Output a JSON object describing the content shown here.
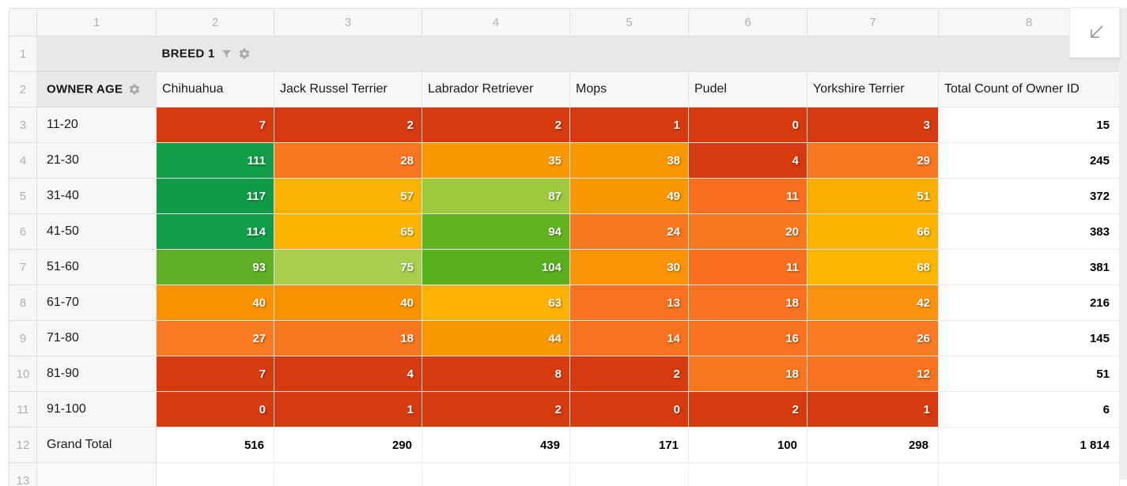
{
  "spreadsheet": {
    "column_headers": [
      "1",
      "2",
      "3",
      "4",
      "5",
      "6",
      "7",
      "8"
    ],
    "row_headers": [
      "1",
      "2",
      "3",
      "4",
      "5",
      "6",
      "7",
      "8",
      "9",
      "10",
      "11",
      "12",
      "13"
    ]
  },
  "pivot": {
    "row_dimension": "BREED 1",
    "column_dimension": "OWNER AGE",
    "totals_header": "Total Count of Owner ID",
    "grand_total_label": "Grand Total"
  },
  "chart_data": {
    "type": "heatmap",
    "x_categories": [
      "Chihuahua",
      "Jack Russel Terrier",
      "Labrador Retriever",
      "Mops",
      "Pudel",
      "Yorkshire Terrier"
    ],
    "y_categories": [
      "11-20",
      "21-30",
      "31-40",
      "41-50",
      "51-60",
      "61-70",
      "71-80",
      "81-90",
      "91-100"
    ],
    "values": [
      [
        7,
        2,
        2,
        1,
        0,
        3
      ],
      [
        111,
        28,
        35,
        38,
        4,
        29
      ],
      [
        117,
        57,
        87,
        49,
        11,
        51
      ],
      [
        114,
        65,
        94,
        24,
        20,
        66
      ],
      [
        93,
        75,
        104,
        30,
        11,
        68
      ],
      [
        40,
        40,
        63,
        13,
        18,
        42
      ],
      [
        27,
        18,
        44,
        14,
        16,
        26
      ],
      [
        7,
        4,
        8,
        2,
        18,
        12
      ],
      [
        0,
        1,
        2,
        0,
        2,
        1
      ]
    ],
    "row_totals": [
      15,
      245,
      372,
      383,
      381,
      216,
      145,
      51,
      6
    ],
    "column_totals": [
      "516",
      "290",
      "439",
      "171",
      "100",
      "298"
    ],
    "grand_total": "1 814",
    "cell_colors": [
      [
        "#d63b10",
        "#d63b10",
        "#d63b10",
        "#d63b10",
        "#d63b10",
        "#d63b10"
      ],
      [
        "#129d49",
        "#f87620",
        "#fa9800",
        "#fa9800",
        "#d63b10",
        "#f87620"
      ],
      [
        "#0e9c49",
        "#fcb200",
        "#9cca3c",
        "#fa9800",
        "#f8701f",
        "#fbae00"
      ],
      [
        "#109d49",
        "#fcb400",
        "#63b321",
        "#f87a20",
        "#f87a20",
        "#fcb400"
      ],
      [
        "#5fae23",
        "#a9ce4e",
        "#58b01e",
        "#fa9406",
        "#f8701f",
        "#fcb600"
      ],
      [
        "#fa9200",
        "#fa9200",
        "#fcb103",
        "#f8721f",
        "#f8721f",
        "#fa9310"
      ],
      [
        "#f87a22",
        "#f8761f",
        "#fa9800",
        "#f8731f",
        "#f8731f",
        "#f87a22"
      ],
      [
        "#d63b10",
        "#d63b10",
        "#d63b10",
        "#d63b10",
        "#f8761f",
        "#f8731f"
      ],
      [
        "#d63b10",
        "#d63b10",
        "#d63b10",
        "#d63b10",
        "#d63b10",
        "#d63b10"
      ]
    ]
  },
  "icons": {
    "breed_filter": "funnel-icon",
    "breed_settings": "gear-icon",
    "owner_age_settings": "gear-icon",
    "grid_toggle": "arrow-down-left-icon"
  },
  "colors": {
    "heat_low": "#d63b10",
    "heat_mid": "#fcb400",
    "heat_high": "#0e9c49",
    "dimension_header_bg": "#e8e8e8",
    "header_bg": "#f7f7f7",
    "axis_text": "#b1b1b1",
    "grid_border": "#e0e0e0"
  }
}
